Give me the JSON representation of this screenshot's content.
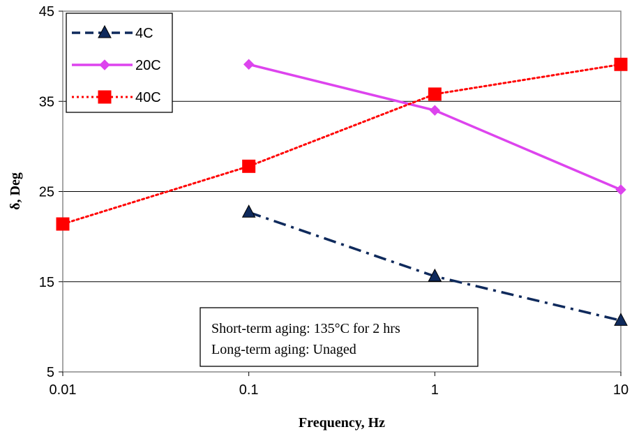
{
  "chart_data": {
    "type": "line",
    "xlabel": "Frequency, Hz",
    "ylabel": "δ, Deg",
    "x_scale": "log",
    "xlim": [
      0.01,
      10
    ],
    "ylim": [
      5,
      45
    ],
    "x_ticks": [
      0.01,
      0.1,
      1,
      10
    ],
    "x_tick_labels": [
      "0.01",
      "0.1",
      "1",
      "10"
    ],
    "y_ticks": [
      5,
      15,
      25,
      35,
      45
    ],
    "y_tick_labels": [
      "5",
      "15",
      "25",
      "35",
      "45"
    ],
    "grid": "horizontal",
    "legend_position": "top-left",
    "series": [
      {
        "name": "4C",
        "color": "#0f2a5c",
        "marker": "triangle",
        "line_style": "dash-dot",
        "x": [
          0.1,
          1,
          10
        ],
        "y": [
          22.7,
          15.6,
          10.7
        ]
      },
      {
        "name": "20C",
        "color": "#dd44ee",
        "marker": "diamond",
        "line_style": "solid",
        "x": [
          0.1,
          1,
          10
        ],
        "y": [
          39.1,
          34.0,
          25.2
        ]
      },
      {
        "name": "40C",
        "color": "#ff0000",
        "marker": "square",
        "line_style": "dotted",
        "x": [
          0.01,
          0.1,
          1,
          10
        ],
        "y": [
          21.4,
          27.8,
          35.8,
          39.1
        ]
      }
    ],
    "annotation": {
      "lines": [
        "Short-term aging: 135°C for 2 hrs",
        "Long-term aging: Unaged"
      ]
    }
  }
}
